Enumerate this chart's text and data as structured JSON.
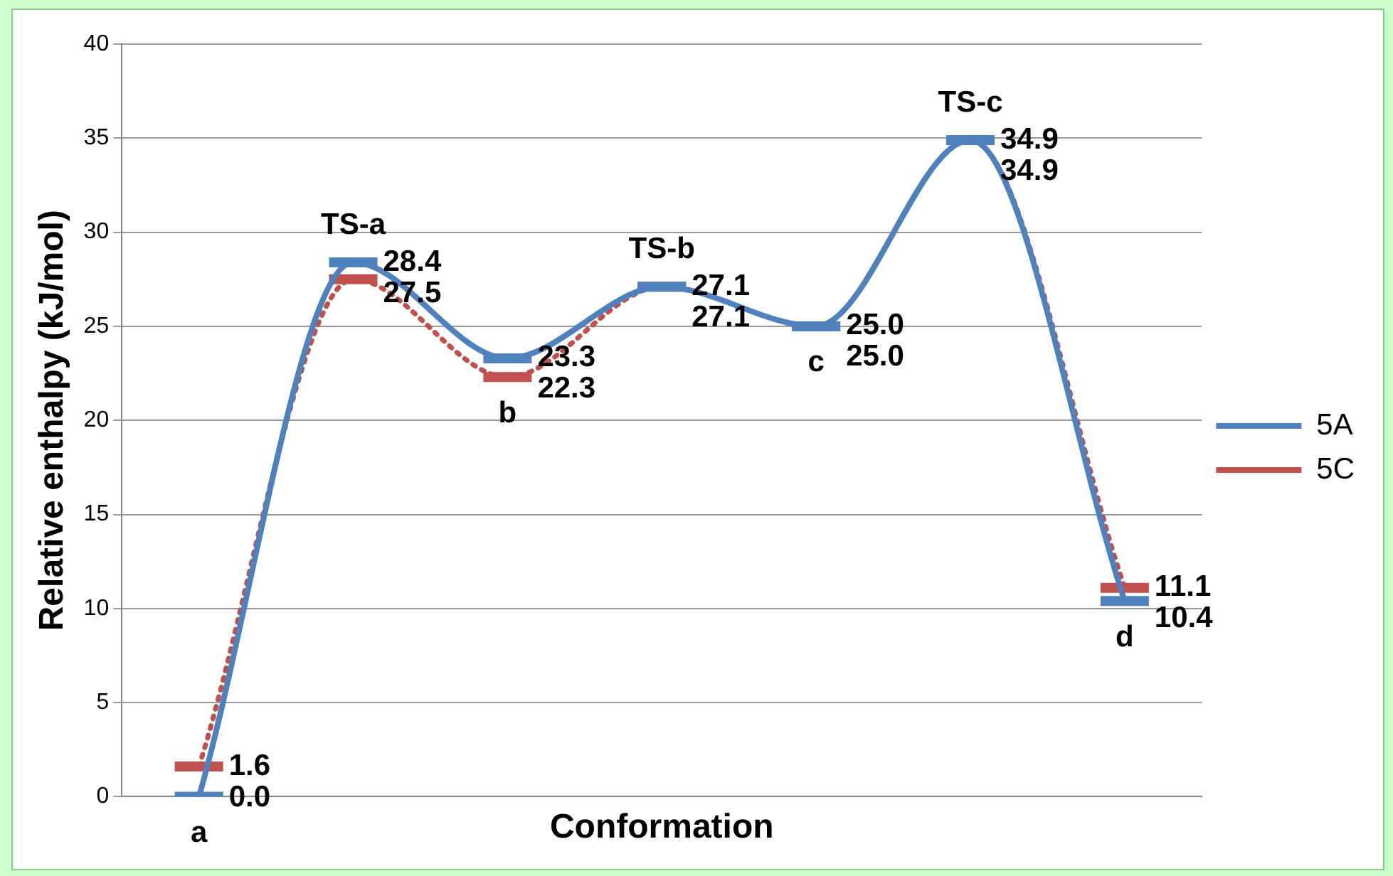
{
  "chart_data": {
    "type": "line",
    "xlabel": "Conformation",
    "ylabel": "Relative enthalpy (kJ/mol)",
    "categories": [
      "a",
      "TS-a",
      "b",
      "TS-b",
      "c",
      "TS-c",
      "d"
    ],
    "series": [
      {
        "name": "5A",
        "color": "#4f81bd",
        "line_style": "solid",
        "values": [
          0.0,
          28.4,
          23.3,
          27.1,
          25.0,
          34.9,
          10.4
        ],
        "value_labels": [
          "0.0",
          "28.4",
          "23.3",
          "27.1",
          "25.0",
          "34.9",
          "10.4"
        ]
      },
      {
        "name": "5C",
        "color": "#c0504d",
        "line_style": "dotted",
        "values": [
          1.6,
          27.5,
          22.3,
          27.1,
          25.0,
          34.9,
          11.1
        ],
        "value_labels": [
          "1.6",
          "27.5",
          "22.3",
          "27.1",
          "25.0",
          "34.9",
          "11.1"
        ]
      }
    ],
    "ylim": [
      0,
      40
    ],
    "yticks": [
      0,
      5,
      10,
      15,
      20,
      25,
      30,
      35,
      40
    ],
    "grid": "y",
    "legend": "right",
    "tick_labels": "y"
  }
}
